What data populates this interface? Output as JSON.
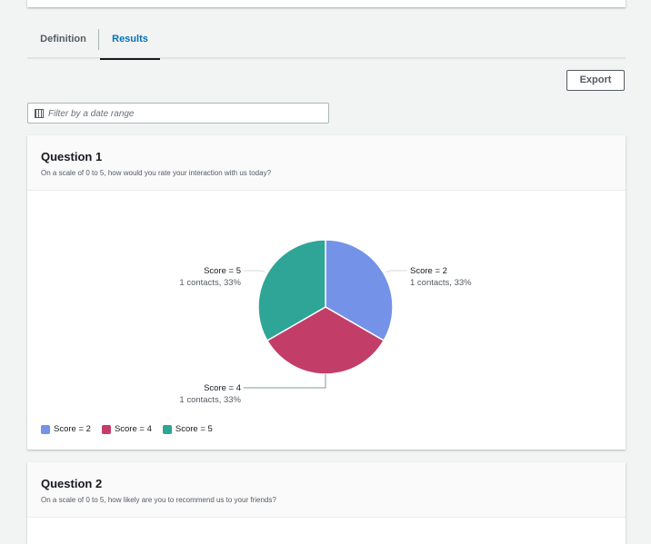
{
  "tabs": [
    {
      "label": "Definition"
    },
    {
      "label": "Results"
    }
  ],
  "export_label": "Export",
  "filter": {
    "placeholder": "Filter by a date range",
    "icon": "calendar-icon"
  },
  "questions": [
    {
      "title": "Question 1",
      "text": "On a scale of 0 to 5, how would you rate your interaction with us today?"
    },
    {
      "title": "Question 2",
      "text": "On a scale of 0 to 5, how likely are you to recommend us to your friends?"
    }
  ],
  "chart_data": {
    "type": "pie",
    "categories": [
      "Score = 2",
      "Score = 4",
      "Score = 5"
    ],
    "values": [
      1,
      1,
      1
    ],
    "labels": [
      "1 contacts, 33%",
      "1 contacts, 33%",
      "1 contacts, 33%"
    ],
    "colors": [
      "#7492e7",
      "#c33d69",
      "#2ea597"
    ],
    "legend_position": "bottom-left"
  }
}
